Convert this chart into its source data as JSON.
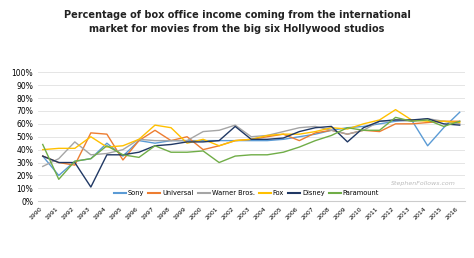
{
  "title": "Percentage of box office income coming from the international\nmarket for movies from the big six Hollywood studios",
  "years": [
    1990,
    1991,
    1992,
    1993,
    1994,
    1995,
    1996,
    1997,
    1998,
    1999,
    2000,
    2001,
    2002,
    2003,
    2004,
    2005,
    2006,
    2007,
    2008,
    2009,
    2010,
    2011,
    2012,
    2013,
    2014,
    2015,
    2016
  ],
  "studios": {
    "Sony": {
      "color": "#5b9bd5",
      "values": [
        35,
        20,
        31,
        33,
        45,
        35,
        47,
        45,
        47,
        47,
        47,
        47,
        47,
        47,
        47,
        48,
        50,
        52,
        55,
        57,
        58,
        60,
        62,
        63,
        43,
        57,
        69
      ]
    },
    "Universal": {
      "color": "#ed7d31",
      "values": [
        35,
        30,
        28,
        53,
        52,
        32,
        47,
        55,
        47,
        50,
        40,
        43,
        47,
        48,
        50,
        52,
        47,
        53,
        55,
        52,
        55,
        54,
        60,
        60,
        61,
        62,
        62
      ]
    },
    "Warner Bros.": {
      "color": "#a5a5a5",
      "values": [
        27,
        33,
        46,
        36,
        37,
        40,
        48,
        47,
        47,
        47,
        54,
        55,
        59,
        50,
        51,
        54,
        57,
        58,
        55,
        52,
        55,
        62,
        63,
        62,
        64,
        62,
        60
      ]
    },
    "Fox": {
      "color": "#ffc000",
      "values": [
        40,
        41,
        41,
        50,
        42,
        43,
        48,
        59,
        57,
        45,
        48,
        43,
        47,
        48,
        51,
        52,
        52,
        54,
        57,
        56,
        60,
        63,
        71,
        63,
        62,
        62,
        61
      ]
    },
    "Disney": {
      "color": "#203864",
      "values": [
        35,
        30,
        30,
        11,
        36,
        36,
        38,
        43,
        44,
        46,
        46,
        47,
        58,
        48,
        48,
        49,
        54,
        57,
        58,
        46,
        57,
        62,
        63,
        63,
        64,
        60,
        59
      ]
    },
    "Paramount": {
      "color": "#70ad47",
      "values": [
        44,
        17,
        31,
        33,
        43,
        36,
        34,
        43,
        38,
        38,
        39,
        30,
        35,
        36,
        36,
        38,
        42,
        47,
        51,
        57,
        55,
        55,
        65,
        62,
        63,
        58,
        62
      ]
    }
  },
  "ylim": [
    0,
    100
  ],
  "yticks": [
    0,
    10,
    20,
    30,
    40,
    50,
    60,
    70,
    80,
    90,
    100
  ],
  "background_color": "#ffffff",
  "watermark": "StephenFollows.com"
}
